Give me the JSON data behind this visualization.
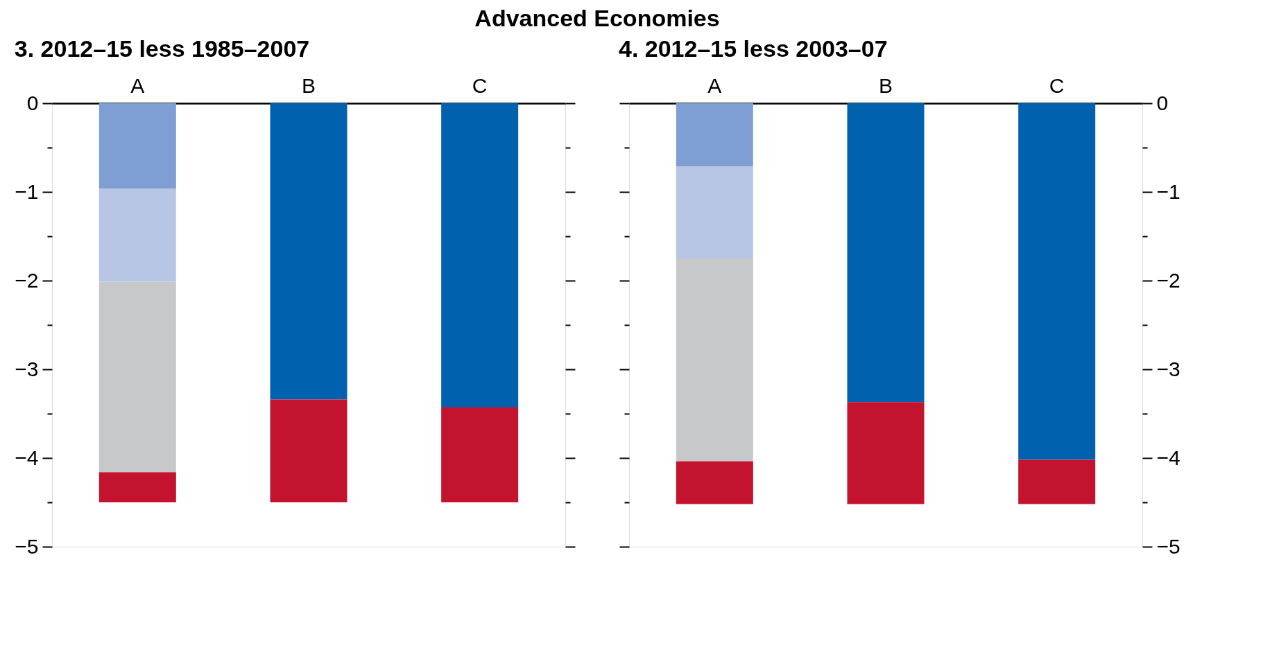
{
  "chart_data": [
    {
      "type": "bar",
      "title": "Advanced Economies",
      "subtitle": "3. 2012–15 less 1985–2007",
      "categories": [
        "A",
        "B",
        "C"
      ],
      "stacked": true,
      "series": [
        {
          "color": "#7f9fd4",
          "values": [
            -0.96,
            null,
            null
          ]
        },
        {
          "color": "#b8c6e6",
          "values": [
            -1.05,
            null,
            null
          ]
        },
        {
          "color": "#c7c8ca",
          "values": [
            -2.15,
            null,
            null
          ]
        },
        {
          "color": "#0061af",
          "values": [
            null,
            -3.34,
            -3.43
          ]
        },
        {
          "color": "#c3132f",
          "values": [
            -0.34,
            -1.16,
            -1.07
          ]
        }
      ],
      "ylim": [
        -5,
        0
      ],
      "yticks": [
        {
          "value": 0,
          "label": "0"
        },
        {
          "value": -0.5,
          "label": null
        },
        {
          "value": -1,
          "label": "−1"
        },
        {
          "value": -1.5,
          "label": null
        },
        {
          "value": -2,
          "label": "−2"
        },
        {
          "value": -2.5,
          "label": null
        },
        {
          "value": -3,
          "label": "−3"
        },
        {
          "value": -3.5,
          "label": null
        },
        {
          "value": -4,
          "label": "−4"
        },
        {
          "value": -4.5,
          "label": null
        },
        {
          "value": -5,
          "label": "−5"
        }
      ],
      "grid": false,
      "legend": false
    },
    {
      "type": "bar",
      "subtitle": "4. 2012–15 less 2003–07",
      "categories": [
        "A",
        "B",
        "C"
      ],
      "stacked": true,
      "series": [
        {
          "color": "#7f9fd4",
          "values": [
            -0.71,
            null,
            null
          ]
        },
        {
          "color": "#b8c6e6",
          "values": [
            -1.04,
            null,
            null
          ]
        },
        {
          "color": "#c7c8ca",
          "values": [
            -2.29,
            null,
            null
          ]
        },
        {
          "color": "#0061af",
          "values": [
            null,
            -3.37,
            -4.02
          ]
        },
        {
          "color": "#c3132f",
          "values": [
            -0.48,
            -1.15,
            -0.5
          ]
        }
      ],
      "ylim": [
        -5,
        0
      ],
      "yticks": [
        {
          "value": 0,
          "label": "0"
        },
        {
          "value": -0.5,
          "label": null
        },
        {
          "value": -1,
          "label": "−1"
        },
        {
          "value": -1.5,
          "label": null
        },
        {
          "value": -2,
          "label": "−2"
        },
        {
          "value": -2.5,
          "label": null
        },
        {
          "value": -3,
          "label": "−3"
        },
        {
          "value": -3.5,
          "label": null
        },
        {
          "value": -4,
          "label": "−4"
        },
        {
          "value": -4.5,
          "label": null
        },
        {
          "value": -5,
          "label": "−5"
        }
      ],
      "grid": false,
      "legend": false
    }
  ]
}
